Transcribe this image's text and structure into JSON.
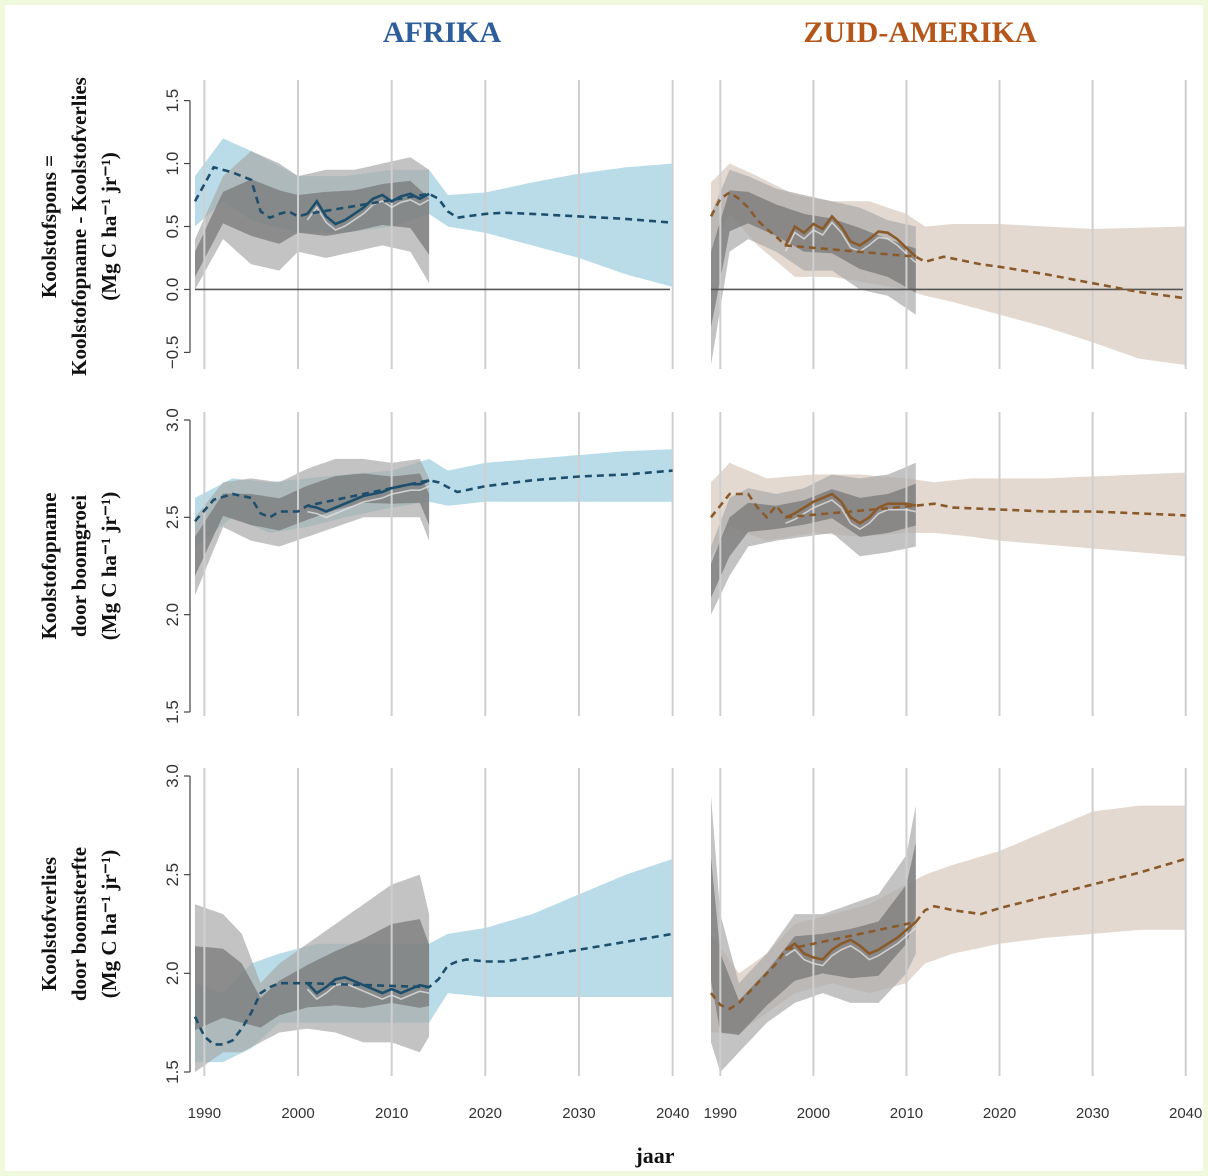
{
  "colors": {
    "africa": "#1d4f6d",
    "africa_band": "#a8d3e2",
    "south_america": "#8b5a2b",
    "south_america_band": "#ddd0c4",
    "africa_title": "#2e5f9a",
    "south_america_title": "#b5561a",
    "frame": "#f1f9dd"
  },
  "titles": {
    "africa": "AFRIKA",
    "south_america": "ZUID-AMERIKA"
  },
  "xlabel": "jaar",
  "ylabels": [
    [
      "Koolstofspons =",
      "Koolstofopname - Koolstofverlies",
      "(Mg C ha⁻¹ jr⁻¹)"
    ],
    [
      "Koolstofopname",
      "door boomgroei",
      "(Mg C ha⁻¹ jr⁻¹)"
    ],
    [
      "Koolstofverlies",
      "door boomsterfte",
      "(Mg C ha⁻¹ jr⁻¹)"
    ]
  ],
  "chart_data": [
    {
      "type": "line",
      "row": 0,
      "region": "africa",
      "title": "AFRIKA",
      "ylabel": "Koolstofspons = Koolstofopname - Koolstofverlies (Mg C ha⁻¹ jr⁻¹)",
      "xlim": [
        1989,
        2041
      ],
      "ylim": [
        -0.6,
        1.6
      ],
      "xticks": [
        1990,
        2000,
        2010,
        2020,
        2030,
        2040
      ],
      "yticks": [
        -0.5,
        0.0,
        0.5,
        1.0,
        1.5
      ],
      "yticklabels": [
        "−0.5",
        "0.0",
        "0.5",
        "1.0",
        "1.5"
      ],
      "hline": 0,
      "observed": {
        "x": [
          2001,
          2002,
          2003,
          2004,
          2005,
          2006,
          2007,
          2008,
          2009,
          2010,
          2011,
          2012,
          2013,
          2014
        ],
        "y": [
          0.6,
          0.7,
          0.58,
          0.52,
          0.55,
          0.6,
          0.65,
          0.72,
          0.75,
          0.7,
          0.74,
          0.76,
          0.72,
          0.76
        ]
      },
      "projection": {
        "x": [
          1989,
          1991,
          1993,
          1995,
          1996,
          1997,
          1998,
          1999,
          2000,
          2001,
          2014,
          2015,
          2016,
          2017,
          2018,
          2020,
          2022,
          2025,
          2030,
          2035,
          2040
        ],
        "y": [
          0.7,
          0.97,
          0.93,
          0.87,
          0.62,
          0.57,
          0.6,
          0.62,
          0.58,
          0.6,
          0.76,
          0.72,
          0.62,
          0.57,
          0.58,
          0.6,
          0.61,
          0.6,
          0.58,
          0.56,
          0.53
        ]
      },
      "band": {
        "x": [
          1989,
          1992,
          1995,
          2000,
          2005,
          2010,
          2014,
          2016,
          2020,
          2025,
          2030,
          2035,
          2040
        ],
        "lower": [
          0.5,
          0.7,
          0.55,
          0.45,
          0.45,
          0.5,
          0.6,
          0.5,
          0.45,
          0.35,
          0.25,
          0.12,
          0.02
        ],
        "upper": [
          0.9,
          1.2,
          1.1,
          0.9,
          0.9,
          0.95,
          0.95,
          0.75,
          0.77,
          0.85,
          0.92,
          0.97,
          1.0
        ]
      },
      "grey_band": {
        "x": [
          1989,
          1992,
          1995,
          1998,
          2000,
          2003,
          2006,
          2009,
          2012,
          2014
        ],
        "lower": [
          0.0,
          0.4,
          0.2,
          0.15,
          0.3,
          0.25,
          0.3,
          0.35,
          0.3,
          0.05
        ],
        "upper": [
          0.4,
          0.9,
          1.1,
          1.0,
          0.9,
          0.95,
          0.95,
          1.0,
          1.05,
          0.95
        ]
      }
    },
    {
      "type": "line",
      "row": 0,
      "region": "south_america",
      "title": "ZUID-AMERIKA",
      "xlim": [
        1989,
        2041
      ],
      "ylim": [
        -0.6,
        1.6
      ],
      "xticks": [
        1990,
        2000,
        2010,
        2020,
        2030,
        2040
      ],
      "yticks": [
        -0.5,
        0.0,
        0.5,
        1.0,
        1.5
      ],
      "hline": 0,
      "observed": {
        "x": [
          1997,
          1998,
          1999,
          2000,
          2001,
          2002,
          2003,
          2004,
          2005,
          2006,
          2007,
          2008,
          2009,
          2010,
          2011
        ],
        "y": [
          0.35,
          0.5,
          0.45,
          0.52,
          0.48,
          0.58,
          0.5,
          0.38,
          0.35,
          0.4,
          0.46,
          0.45,
          0.4,
          0.33,
          0.26
        ]
      },
      "projection": {
        "x": [
          1989,
          1990,
          1991,
          1992,
          1993,
          1994,
          1995,
          1996,
          1997,
          2011,
          2012,
          2014,
          2016,
          2018,
          2020,
          2025,
          2030,
          2035,
          2040
        ],
        "y": [
          0.58,
          0.72,
          0.77,
          0.72,
          0.65,
          0.55,
          0.48,
          0.42,
          0.35,
          0.26,
          0.22,
          0.26,
          0.23,
          0.2,
          0.18,
          0.12,
          0.05,
          -0.02,
          -0.07
        ]
      },
      "band": {
        "x": [
          1989,
          1991,
          1994,
          1998,
          2002,
          2006,
          2010,
          2012,
          2015,
          2020,
          2025,
          2030,
          2035,
          2040
        ],
        "lower": [
          0.3,
          0.6,
          0.35,
          0.1,
          0.1,
          0.05,
          0.0,
          -0.05,
          -0.1,
          -0.2,
          -0.3,
          -0.42,
          -0.55,
          -0.6
        ],
        "upper": [
          0.85,
          1.0,
          0.9,
          0.75,
          0.7,
          0.7,
          0.6,
          0.5,
          0.52,
          0.52,
          0.5,
          0.48,
          0.49,
          0.5
        ]
      },
      "grey_band": {
        "x": [
          1989,
          1991,
          1993,
          1996,
          1999,
          2002,
          2005,
          2008,
          2011
        ],
        "lower": [
          -0.6,
          0.3,
          0.4,
          0.3,
          0.15,
          0.15,
          0.0,
          -0.05,
          -0.2
        ],
        "upper": [
          0.6,
          0.95,
          0.9,
          0.8,
          0.75,
          0.7,
          0.65,
          0.55,
          0.5
        ]
      }
    },
    {
      "type": "line",
      "row": 1,
      "region": "africa",
      "ylabel": "Koolstofopname door boomgroei (Mg C ha⁻¹ jr⁻¹)",
      "xlim": [
        1989,
        2041
      ],
      "ylim": [
        1.5,
        3.0
      ],
      "xticks": [
        1990,
        2000,
        2010,
        2020,
        2030,
        2040
      ],
      "yticks": [
        1.5,
        2.0,
        2.5,
        3.0
      ],
      "yticklabels": [
        "1.5",
        "2.0",
        "2.5",
        "3.0"
      ],
      "observed": {
        "x": [
          2001,
          2002,
          2003,
          2004,
          2005,
          2006,
          2007,
          2008,
          2009,
          2010,
          2011,
          2012,
          2013,
          2014
        ],
        "y": [
          2.56,
          2.55,
          2.53,
          2.55,
          2.57,
          2.59,
          2.61,
          2.62,
          2.63,
          2.65,
          2.66,
          2.67,
          2.67,
          2.69
        ]
      },
      "projection": {
        "x": [
          1989,
          1991,
          1993,
          1995,
          1996,
          1997,
          1998,
          2000,
          2001,
          2014,
          2015,
          2017,
          2020,
          2025,
          2030,
          2035,
          2040
        ],
        "y": [
          2.48,
          2.59,
          2.62,
          2.6,
          2.52,
          2.5,
          2.53,
          2.53,
          2.56,
          2.69,
          2.68,
          2.63,
          2.66,
          2.69,
          2.71,
          2.72,
          2.74
        ]
      },
      "band": {
        "x": [
          1989,
          1993,
          1997,
          2001,
          2005,
          2010,
          2014,
          2016,
          2020,
          2025,
          2030,
          2035,
          2040
        ],
        "lower": [
          2.35,
          2.5,
          2.42,
          2.45,
          2.5,
          2.55,
          2.58,
          2.56,
          2.58,
          2.58,
          2.58,
          2.58,
          2.58
        ],
        "upper": [
          2.6,
          2.7,
          2.68,
          2.7,
          2.72,
          2.74,
          2.8,
          2.74,
          2.78,
          2.8,
          2.82,
          2.84,
          2.85
        ]
      },
      "grey_band": {
        "x": [
          1989,
          1992,
          1995,
          1998,
          2001,
          2004,
          2007,
          2010,
          2013,
          2014
        ],
        "lower": [
          2.1,
          2.45,
          2.38,
          2.35,
          2.4,
          2.45,
          2.5,
          2.5,
          2.5,
          2.38
        ],
        "upper": [
          2.5,
          2.68,
          2.7,
          2.68,
          2.75,
          2.8,
          2.8,
          2.78,
          2.8,
          2.7
        ]
      }
    },
    {
      "type": "line",
      "row": 1,
      "region": "south_america",
      "xlim": [
        1989,
        2041
      ],
      "ylim": [
        1.5,
        3.0
      ],
      "xticks": [
        1990,
        2000,
        2010,
        2020,
        2030,
        2040
      ],
      "yticks": [
        1.5,
        2.0,
        2.5,
        3.0
      ],
      "observed": {
        "x": [
          1997,
          1998,
          1999,
          2000,
          2001,
          2002,
          2003,
          2004,
          2005,
          2006,
          2007,
          2008,
          2009,
          2010,
          2011
        ],
        "y": [
          2.5,
          2.52,
          2.55,
          2.58,
          2.6,
          2.62,
          2.58,
          2.5,
          2.47,
          2.5,
          2.55,
          2.57,
          2.57,
          2.57,
          2.56
        ]
      },
      "projection": {
        "x": [
          1989,
          1991,
          1993,
          1994,
          1995,
          1996,
          1997,
          2011,
          2013,
          2015,
          2020,
          2025,
          2030,
          2035,
          2040
        ],
        "y": [
          2.5,
          2.62,
          2.62,
          2.55,
          2.5,
          2.56,
          2.5,
          2.56,
          2.57,
          2.55,
          2.54,
          2.53,
          2.53,
          2.52,
          2.51
        ]
      },
      "band": {
        "x": [
          1989,
          1991,
          1995,
          2000,
          2005,
          2010,
          2013,
          2017,
          2020,
          2025,
          2030,
          2035,
          2040
        ],
        "lower": [
          2.3,
          2.45,
          2.38,
          2.42,
          2.4,
          2.42,
          2.42,
          2.4,
          2.38,
          2.36,
          2.34,
          2.32,
          2.3
        ],
        "upper": [
          2.68,
          2.78,
          2.7,
          2.72,
          2.72,
          2.7,
          2.68,
          2.7,
          2.7,
          2.7,
          2.71,
          2.72,
          2.73
        ]
      },
      "grey_band": {
        "x": [
          1989,
          1991,
          1993,
          1996,
          1999,
          2002,
          2005,
          2008,
          2011
        ],
        "lower": [
          2.0,
          2.2,
          2.35,
          2.38,
          2.4,
          2.42,
          2.3,
          2.32,
          2.35
        ],
        "upper": [
          2.35,
          2.6,
          2.65,
          2.62,
          2.65,
          2.72,
          2.7,
          2.72,
          2.78
        ]
      }
    },
    {
      "type": "line",
      "row": 2,
      "region": "africa",
      "ylabel": "Koolstofverlies door boomsterfte (Mg C ha⁻¹ jr⁻¹)",
      "xlabel": "jaar",
      "xlim": [
        1989,
        2041
      ],
      "ylim": [
        1.5,
        3.0
      ],
      "xticks": [
        1990,
        2000,
        2010,
        2020,
        2030,
        2040
      ],
      "xticklabels": [
        "1990",
        "2000",
        "2010",
        "2020",
        "2030",
        "2040"
      ],
      "yticks": [
        1.5,
        2.0,
        2.5,
        3.0
      ],
      "yticklabels": [
        "1.5",
        "2.0",
        "2.5",
        "3.0"
      ],
      "observed": {
        "x": [
          2001,
          2002,
          2003,
          2004,
          2005,
          2006,
          2007,
          2008,
          2009,
          2010,
          2011,
          2012,
          2013,
          2014
        ],
        "y": [
          1.95,
          1.9,
          1.93,
          1.97,
          1.98,
          1.96,
          1.94,
          1.92,
          1.9,
          1.92,
          1.9,
          1.92,
          1.94,
          1.93
        ]
      },
      "projection": {
        "x": [
          1989,
          1990,
          1991,
          1992,
          1993,
          1994,
          1995,
          1996,
          1997,
          1998,
          2000,
          2001,
          2014,
          2015,
          2016,
          2017,
          2018,
          2020,
          2022,
          2025,
          2030,
          2035,
          2040
        ],
        "y": [
          1.78,
          1.68,
          1.64,
          1.64,
          1.66,
          1.72,
          1.8,
          1.9,
          1.93,
          1.95,
          1.95,
          1.95,
          1.93,
          1.97,
          2.04,
          2.06,
          2.07,
          2.06,
          2.06,
          2.08,
          2.12,
          2.16,
          2.2
        ]
      },
      "band": {
        "x": [
          1989,
          1992,
          1995,
          1998,
          2002,
          2006,
          2010,
          2014,
          2016,
          2020,
          2025,
          2030,
          2035,
          2040
        ],
        "lower": [
          1.55,
          1.55,
          1.62,
          1.75,
          1.75,
          1.75,
          1.75,
          1.75,
          1.9,
          1.88,
          1.88,
          1.88,
          1.88,
          1.88
        ],
        "upper": [
          1.95,
          1.9,
          2.05,
          2.1,
          2.15,
          2.15,
          2.15,
          2.15,
          2.2,
          2.23,
          2.3,
          2.4,
          2.5,
          2.58
        ]
      },
      "grey_band": {
        "x": [
          1989,
          1992,
          1994,
          1996,
          1998,
          2001,
          2004,
          2007,
          2010,
          2013,
          2014
        ],
        "lower": [
          1.5,
          1.6,
          1.6,
          1.65,
          1.7,
          1.72,
          1.7,
          1.65,
          1.65,
          1.6,
          1.68
        ],
        "upper": [
          2.35,
          2.3,
          2.2,
          1.95,
          2.05,
          2.15,
          2.25,
          2.35,
          2.45,
          2.5,
          2.3
        ]
      }
    },
    {
      "type": "line",
      "row": 2,
      "region": "south_america",
      "xlim": [
        1989,
        2041
      ],
      "ylim": [
        1.5,
        3.0
      ],
      "xticks": [
        1990,
        2000,
        2010,
        2020,
        2030,
        2040
      ],
      "xticklabels": [
        "1990",
        "2000",
        "2010",
        "2020",
        "2030",
        "2040"
      ],
      "yticks": [
        1.5,
        2.0,
        2.5,
        3.0
      ],
      "observed": {
        "x": [
          1997,
          1998,
          1999,
          2000,
          2001,
          2002,
          2003,
          2004,
          2005,
          2006,
          2007,
          2008,
          2009,
          2010,
          2011
        ],
        "y": [
          2.12,
          2.15,
          2.1,
          2.08,
          2.07,
          2.12,
          2.15,
          2.17,
          2.14,
          2.1,
          2.12,
          2.15,
          2.18,
          2.22,
          2.26
        ]
      },
      "projection": {
        "x": [
          1989,
          1990,
          1991,
          1992,
          1993,
          1994,
          1995,
          1996,
          1997,
          2011,
          2012,
          2013,
          2015,
          2018,
          2020,
          2025,
          2030,
          2035,
          2040
        ],
        "y": [
          1.9,
          1.84,
          1.82,
          1.85,
          1.9,
          1.95,
          2.0,
          2.05,
          2.12,
          2.26,
          2.32,
          2.34,
          2.32,
          2.3,
          2.33,
          2.39,
          2.45,
          2.51,
          2.58
        ]
      },
      "band": {
        "x": [
          1989,
          1992,
          1995,
          1998,
          2002,
          2006,
          2010,
          2012,
          2015,
          2020,
          2025,
          2030,
          2035,
          2040
        ],
        "lower": [
          1.7,
          1.7,
          1.8,
          1.9,
          1.95,
          1.9,
          1.95,
          2.05,
          2.1,
          2.15,
          2.18,
          2.2,
          2.22,
          2.22
        ],
        "upper": [
          2.2,
          2.0,
          2.1,
          2.25,
          2.3,
          2.35,
          2.45,
          2.5,
          2.55,
          2.62,
          2.72,
          2.82,
          2.85,
          2.85
        ]
      },
      "grey_band": {
        "x": [
          1989,
          1990,
          1992,
          1995,
          1998,
          2001,
          2004,
          2007,
          2010,
          2011
        ],
        "lower": [
          1.65,
          1.5,
          1.6,
          1.75,
          1.85,
          1.9,
          1.85,
          1.85,
          2.0,
          2.1
        ],
        "upper": [
          2.9,
          2.3,
          1.95,
          2.1,
          2.3,
          2.3,
          2.35,
          2.4,
          2.6,
          2.85
        ]
      }
    }
  ]
}
